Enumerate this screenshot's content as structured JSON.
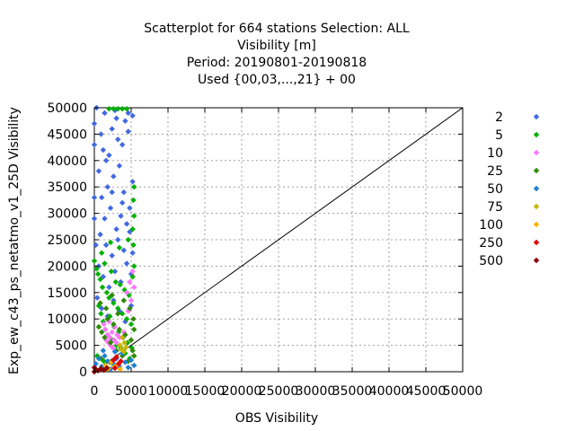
{
  "chart_data": {
    "type": "scatter",
    "title_lines": [
      "Scatterplot for  664 stations Selection: ALL",
      "Visibility [m]",
      "Period: 20190801-20190818",
      "Used {00,03,...,21} + 00"
    ],
    "xlabel": "OBS Visibility",
    "ylabel": "Exp_ew_c43_ps_netatmo_v1_25D Visibility",
    "xlim": [
      0,
      50000
    ],
    "ylim": [
      0,
      50000
    ],
    "x_ticks": [
      "0",
      "5000",
      "10000",
      "15000",
      "20000",
      "25000",
      "30000",
      "35000",
      "40000",
      "45000",
      "50000"
    ],
    "y_ticks": [
      "0",
      "5000",
      "10000",
      "15000",
      "20000",
      "25000",
      "30000",
      "35000",
      "40000",
      "45000",
      "50000"
    ],
    "grid": true,
    "diagonal_line": true,
    "legend_position": "right",
    "series": [
      {
        "name": "2",
        "color": "#4169e1",
        "points": [
          [
            0,
            43000
          ],
          [
            0,
            47000
          ],
          [
            300,
            50000
          ],
          [
            600,
            38000
          ],
          [
            900,
            45000
          ],
          [
            1200,
            42000
          ],
          [
            1600,
            40000
          ],
          [
            2000,
            41000
          ],
          [
            2400,
            46000
          ],
          [
            3000,
            48000
          ],
          [
            3200,
            44000
          ],
          [
            3800,
            43000
          ],
          [
            4200,
            47500
          ],
          [
            4600,
            45500
          ],
          [
            5200,
            48500
          ],
          [
            1000,
            33000
          ],
          [
            1800,
            35000
          ],
          [
            2600,
            37000
          ],
          [
            3400,
            39000
          ],
          [
            4000,
            34000
          ],
          [
            4800,
            31000
          ],
          [
            5200,
            36000
          ],
          [
            1400,
            29000
          ],
          [
            2200,
            31000
          ],
          [
            3000,
            27000
          ],
          [
            3600,
            29500
          ],
          [
            4400,
            28000
          ],
          [
            800,
            26000
          ],
          [
            1600,
            24000
          ],
          [
            2400,
            22000
          ],
          [
            3200,
            25000
          ],
          [
            4000,
            23000
          ],
          [
            4800,
            26500
          ],
          [
            5200,
            22500
          ],
          [
            600,
            20000
          ],
          [
            1200,
            18000
          ],
          [
            2000,
            16000
          ],
          [
            2800,
            19000
          ],
          [
            3600,
            17000
          ],
          [
            4400,
            20500
          ],
          [
            5000,
            18500
          ],
          [
            400,
            14000
          ],
          [
            1000,
            12000
          ],
          [
            1800,
            10500
          ],
          [
            2600,
            13500
          ],
          [
            3400,
            11500
          ],
          [
            4200,
            9500
          ],
          [
            5000,
            12500
          ],
          [
            0,
            33000
          ],
          [
            0,
            29000
          ],
          [
            200,
            24000
          ],
          [
            1400,
            49000
          ],
          [
            2800,
            49500
          ],
          [
            4600,
            49000
          ],
          [
            3800,
            32000
          ],
          [
            2400,
            34000
          ]
        ]
      },
      {
        "name": "5",
        "color": "#00b000",
        "points": [
          [
            0,
            21000
          ],
          [
            300,
            19500
          ],
          [
            500,
            18500
          ],
          [
            800,
            17500
          ],
          [
            1100,
            16000
          ],
          [
            1400,
            20500
          ],
          [
            1700,
            15000
          ],
          [
            2000,
            14000
          ],
          [
            2300,
            19000
          ],
          [
            2600,
            13000
          ],
          [
            2900,
            17000
          ],
          [
            3200,
            12000
          ],
          [
            3500,
            16500
          ],
          [
            3800,
            11000
          ],
          [
            4100,
            15500
          ],
          [
            4400,
            10000
          ],
          [
            4700,
            14500
          ],
          [
            5000,
            9000
          ],
          [
            5200,
            18000
          ],
          [
            5400,
            20000
          ],
          [
            600,
            12500
          ],
          [
            900,
            11000
          ],
          [
            1200,
            9500
          ],
          [
            1500,
            8000
          ],
          [
            1800,
            7000
          ],
          [
            2100,
            10500
          ],
          [
            2400,
            6000
          ],
          [
            2700,
            8500
          ],
          [
            3000,
            5000
          ],
          [
            3300,
            7500
          ],
          [
            3600,
            4500
          ],
          [
            3900,
            6500
          ],
          [
            4200,
            3500
          ],
          [
            4500,
            5500
          ],
          [
            4800,
            2500
          ],
          [
            5100,
            4500
          ],
          [
            1000,
            22500
          ],
          [
            2200,
            24500
          ],
          [
            3400,
            23500
          ],
          [
            4600,
            25000
          ],
          [
            5200,
            27000
          ],
          [
            5400,
            29500
          ],
          [
            5300,
            32500
          ],
          [
            5400,
            35000
          ],
          [
            5300,
            24000
          ],
          [
            2000,
            49800
          ],
          [
            2600,
            49800
          ],
          [
            3200,
            49800
          ],
          [
            3800,
            49800
          ],
          [
            4400,
            49800
          ],
          [
            400,
            3000
          ],
          [
            1300,
            2000
          ],
          [
            2500,
            1500
          ]
        ]
      },
      {
        "name": "10",
        "color": "#ff77ff",
        "points": [
          [
            1500,
            8000
          ],
          [
            1800,
            7000
          ],
          [
            2100,
            6500
          ],
          [
            2400,
            7500
          ],
          [
            2700,
            6000
          ],
          [
            3000,
            5500
          ],
          [
            1600,
            6000
          ],
          [
            1900,
            5500
          ],
          [
            2200,
            5000
          ],
          [
            2500,
            4500
          ],
          [
            2800,
            8500
          ],
          [
            3100,
            7000
          ],
          [
            3400,
            6500
          ],
          [
            4000,
            7500
          ],
          [
            4400,
            15000
          ],
          [
            4800,
            17000
          ],
          [
            5200,
            19000
          ],
          [
            5400,
            16000
          ],
          [
            5000,
            13500
          ],
          [
            4600,
            11500
          ],
          [
            1300,
            9000
          ],
          [
            2000,
            9500
          ]
        ]
      },
      {
        "name": "25",
        "color": "#2e8b00",
        "points": [
          [
            600,
            8500
          ],
          [
            1000,
            7500
          ],
          [
            1400,
            6500
          ],
          [
            1800,
            10000
          ],
          [
            2200,
            5500
          ],
          [
            2600,
            9000
          ],
          [
            3000,
            4000
          ],
          [
            3400,
            8000
          ],
          [
            3800,
            3000
          ],
          [
            4200,
            7000
          ],
          [
            4600,
            2000
          ],
          [
            5000,
            6000
          ],
          [
            5300,
            10000
          ],
          [
            5200,
            4000
          ],
          [
            800,
            13000
          ],
          [
            1600,
            12000
          ],
          [
            2400,
            14500
          ],
          [
            3200,
            11000
          ],
          [
            4000,
            13500
          ],
          [
            4800,
            12000
          ],
          [
            5400,
            8000
          ],
          [
            5400,
            3000
          ],
          [
            900,
            2500
          ],
          [
            2100,
            1800
          ]
        ]
      },
      {
        "name": "50",
        "color": "#1e7fd8",
        "points": [
          [
            200,
            1500
          ],
          [
            600,
            2500
          ],
          [
            1000,
            1000
          ],
          [
            1400,
            3000
          ],
          [
            1800,
            2000
          ],
          [
            2200,
            500
          ],
          [
            2600,
            1500
          ],
          [
            3000,
            2500
          ],
          [
            3400,
            1000
          ],
          [
            3800,
            3500
          ],
          [
            4200,
            1800
          ],
          [
            4600,
            800
          ],
          [
            5000,
            2200
          ],
          [
            5400,
            1200
          ],
          [
            1200,
            4000
          ],
          [
            2800,
            3800
          ]
        ]
      },
      {
        "name": "75",
        "color": "#c8b400",
        "points": [
          [
            3500,
            5000
          ],
          [
            3800,
            6500
          ],
          [
            4100,
            5500
          ],
          [
            3700,
            4200
          ],
          [
            4300,
            4600
          ],
          [
            4000,
            3800
          ]
        ]
      },
      {
        "name": "100",
        "color": "#ffb000",
        "points": [
          [
            1500,
            1200
          ],
          [
            1900,
            600
          ],
          [
            2300,
            1800
          ],
          [
            2700,
            900
          ],
          [
            3100,
            1300
          ],
          [
            3500,
            500
          ]
        ]
      },
      {
        "name": "250",
        "color": "#e00000",
        "points": [
          [
            2600,
            2200
          ],
          [
            3000,
            2800
          ],
          [
            3300,
            1500
          ],
          [
            2800,
            700
          ],
          [
            3600,
            2000
          ]
        ]
      },
      {
        "name": "500",
        "color": "#8b0000",
        "points": [
          [
            0,
            0
          ],
          [
            200,
            400
          ],
          [
            500,
            200
          ],
          [
            900,
            600
          ],
          [
            1300,
            300
          ],
          [
            1700,
            700
          ],
          [
            0,
            800
          ]
        ]
      }
    ]
  }
}
